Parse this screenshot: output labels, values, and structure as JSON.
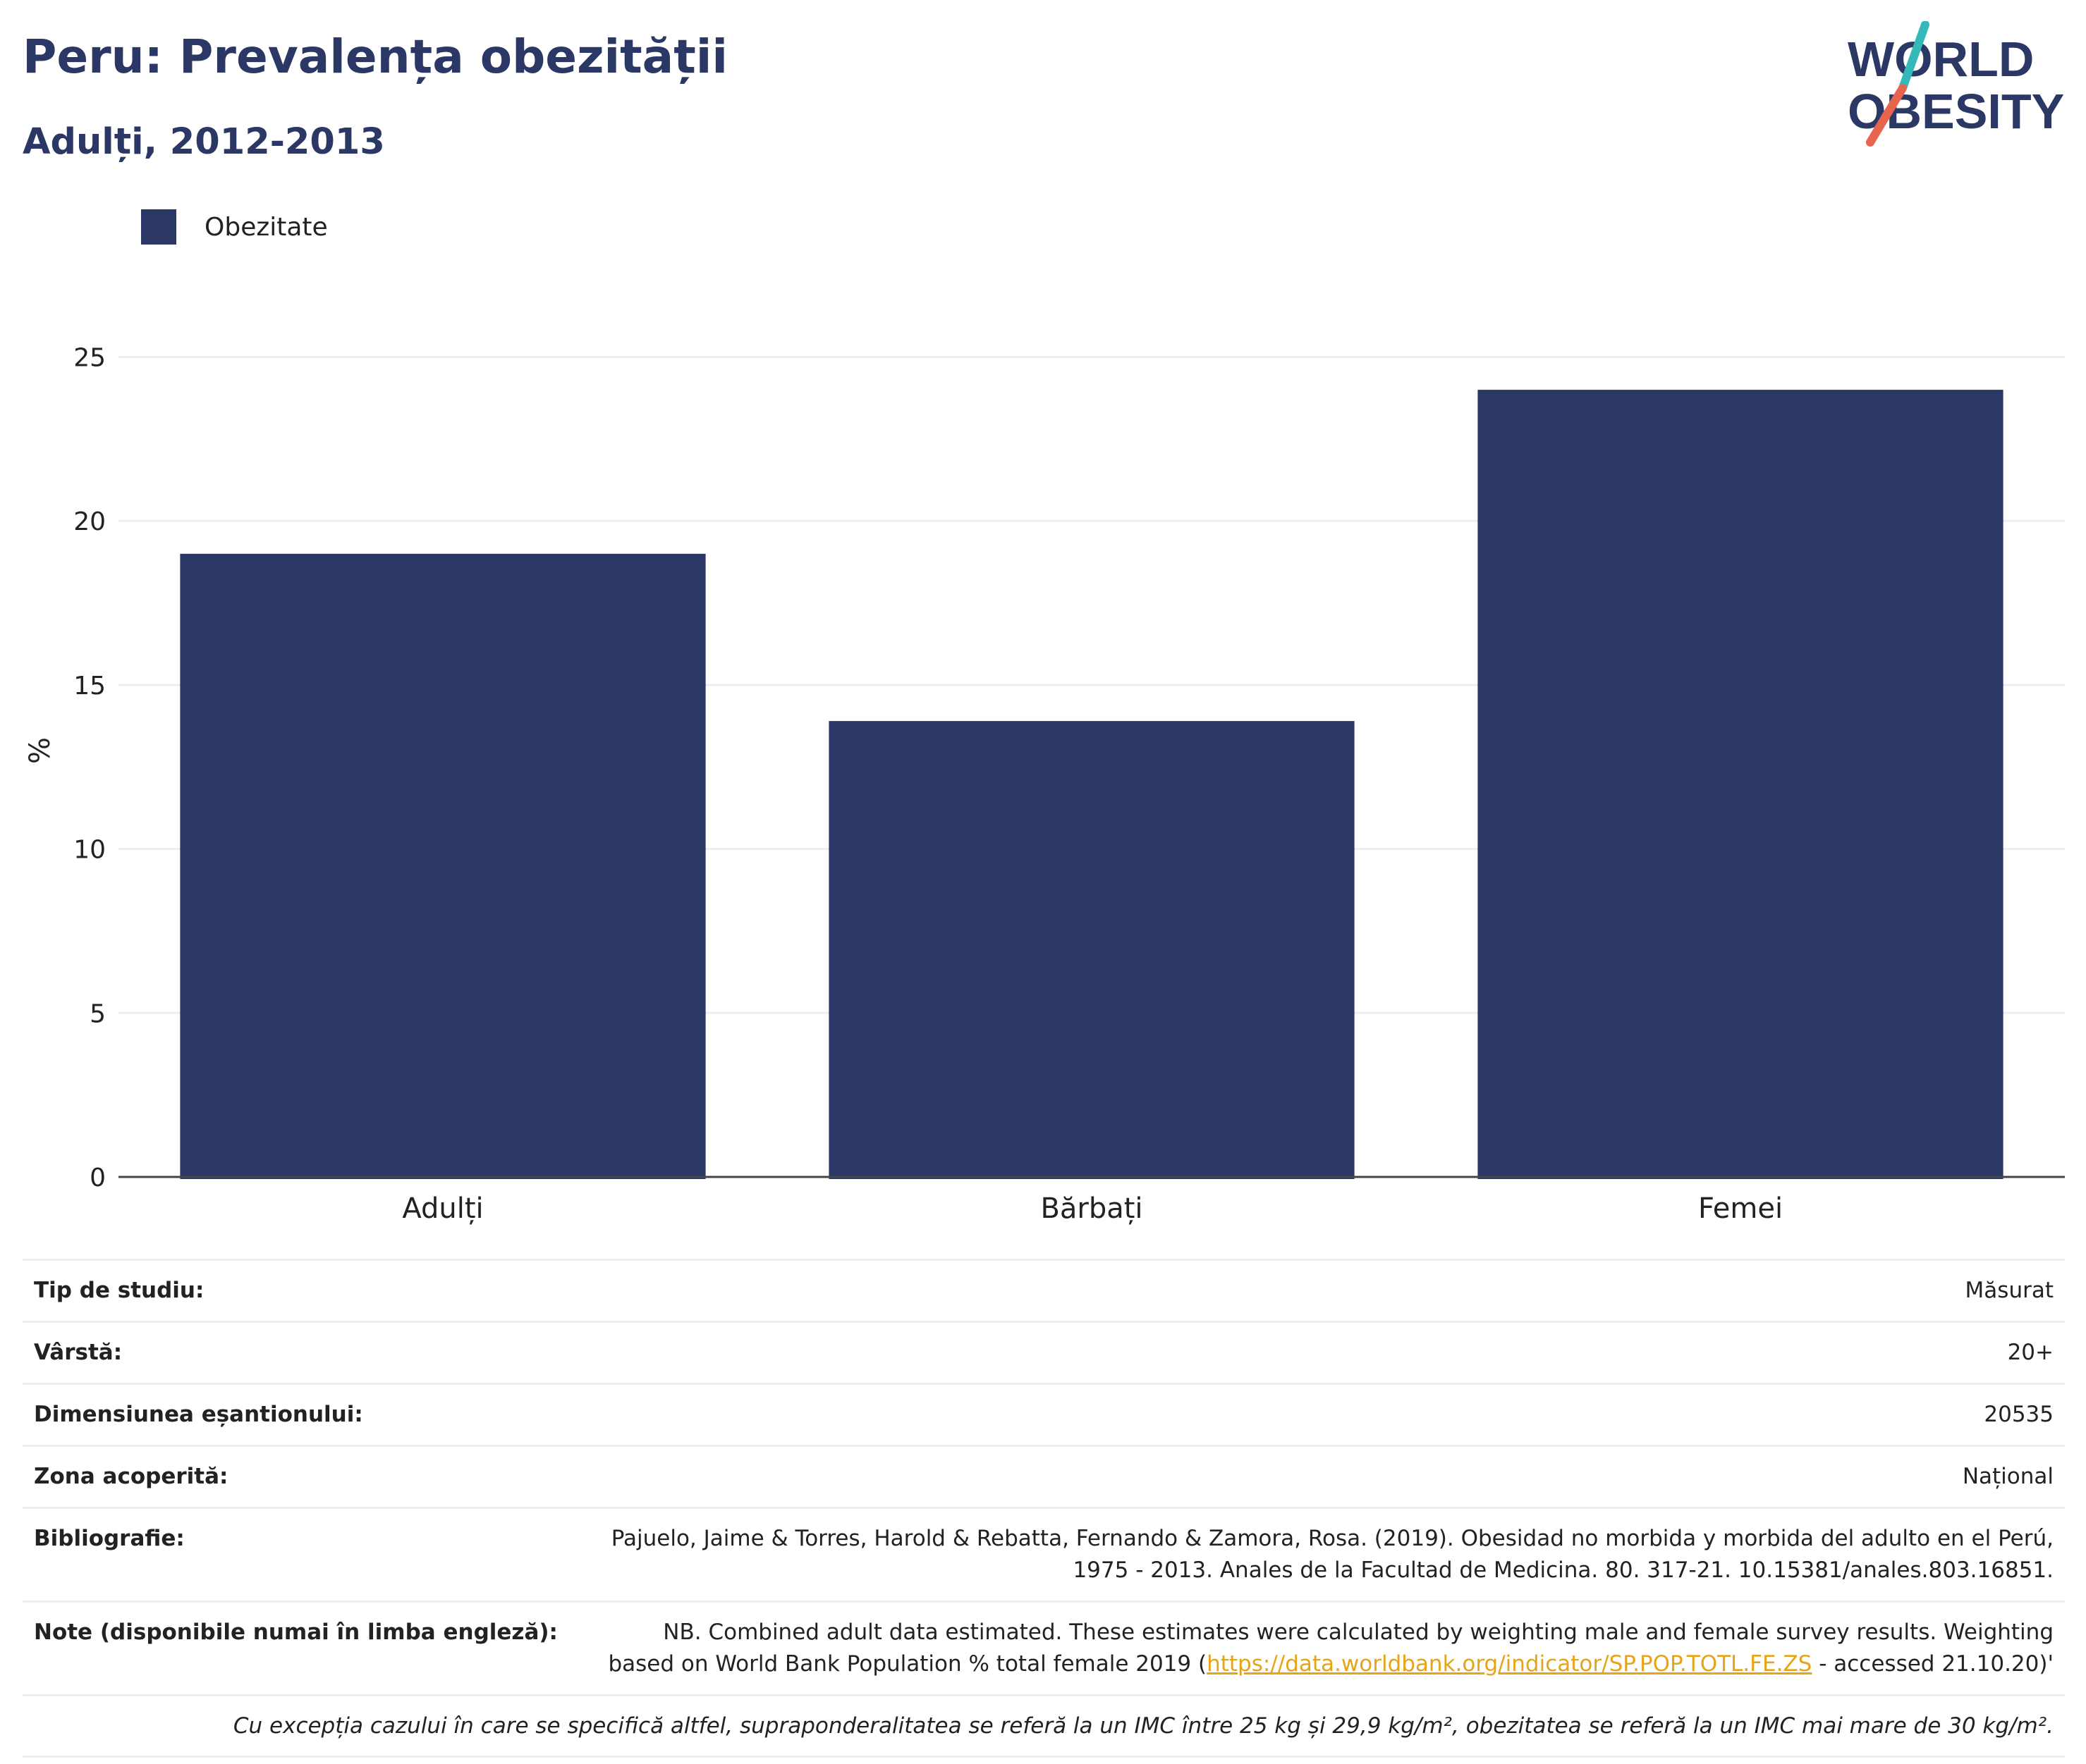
{
  "header": {
    "title": "Peru: Prevalența obezității",
    "subtitle": "Adulți, 2012-2013"
  },
  "logo": {
    "line1": "WORLD",
    "line2": "OBESITY",
    "colors": {
      "text": "#2b3765",
      "slash_top": "#35b8b8",
      "slash_bottom": "#e8644f"
    }
  },
  "legend": {
    "items": [
      {
        "label": "Obezitate",
        "color": "#2b3765"
      }
    ],
    "placement": "top-left"
  },
  "chart_data": {
    "type": "bar",
    "title": "Peru: Prevalența obezității",
    "subtitle": "Adulți, 2012-2013",
    "categories": [
      "Adulți",
      "Bărbați",
      "Femei"
    ],
    "series": [
      {
        "name": "Obezitate",
        "values": [
          19,
          13.9,
          24
        ],
        "color": "#2b3765"
      }
    ],
    "ylabel": "%",
    "xlabel": "",
    "ylim": [
      0,
      26
    ],
    "yticks": [
      0,
      5,
      10,
      15,
      20,
      25
    ],
    "grid": true,
    "legend": "top-left"
  },
  "meta": {
    "rows": [
      {
        "label": "Tip de studiu:",
        "value": "Măsurat"
      },
      {
        "label": "Vârstă:",
        "value": "20+"
      },
      {
        "label": "Dimensiunea eșantionului:",
        "value": "20535"
      },
      {
        "label": "Zona acoperită:",
        "value": "Național"
      },
      {
        "label": "Bibliografie:",
        "value": "Pajuelo, Jaime & Torres, Harold & Rebatta, Fernando & Zamora, Rosa. (2019). Obesidad no morbida y morbida del adulto en el Perú, 1975 - 2013. Anales de la Facultad de Medicina. 80. 317-21. 10.15381/anales.803.16851."
      }
    ],
    "notes": {
      "label": "Note (disponibile numai în limba engleză):",
      "before": "NB. Combined adult data estimated. These estimates were calculated by weighting male and female survey results. Weighting based on World Bank Population % total female 2019 (",
      "link": "https://data.worldbank.org/indicator/SP.POP.TOTL.FE.ZS",
      "after": " - accessed 21.10.20)'"
    },
    "footnote": "Cu excepția cazului în care se specifică altfel, supraponderalitatea se referă la un IMC între 25 kg și 29,9 kg/m², obezitatea se referă la un IMC mai mare de 30 kg/m²."
  }
}
